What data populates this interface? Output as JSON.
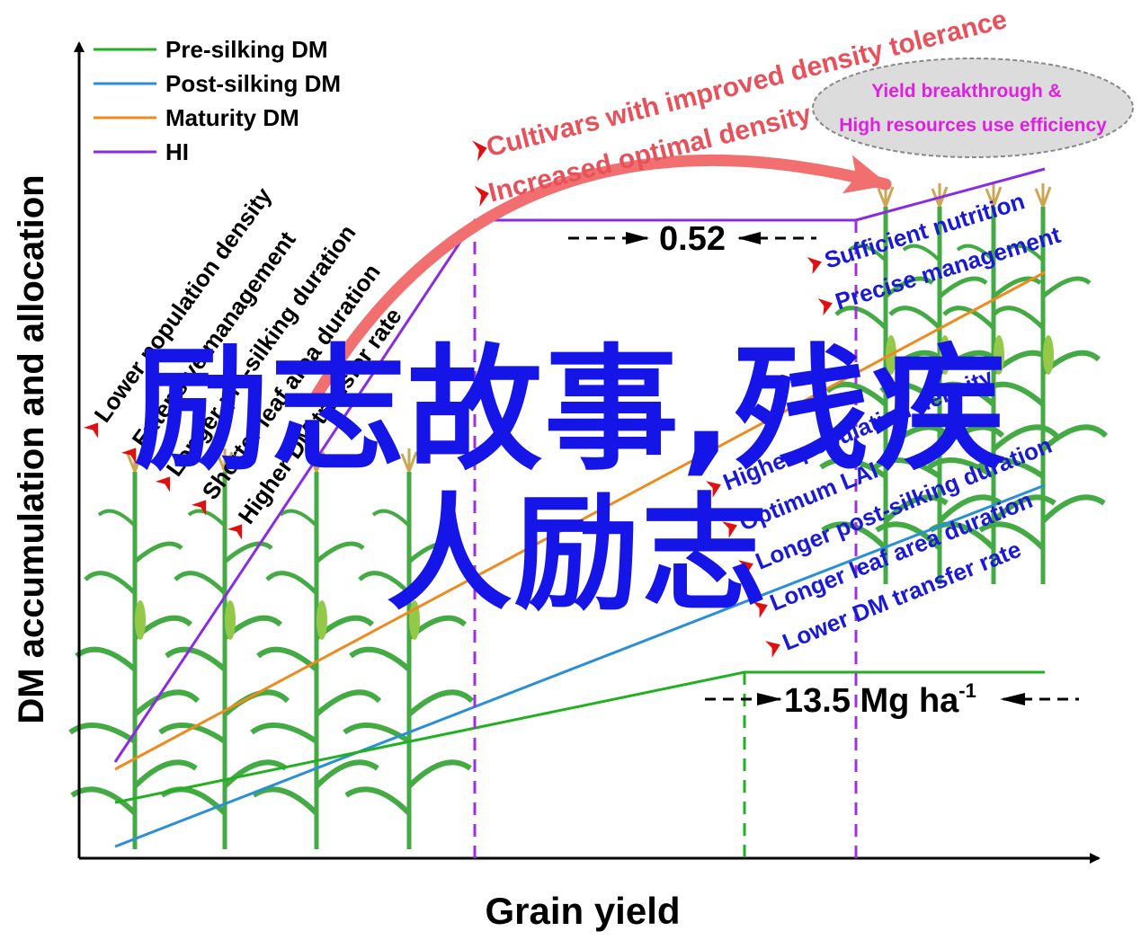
{
  "axes": {
    "xlabel": "Grain yield",
    "ylabel": "DM accumulation and allocation"
  },
  "legend": [
    {
      "label": "Pre-silking DM",
      "color": "#22b022"
    },
    {
      "label": "Post-silking DM",
      "color": "#2a8fd6"
    },
    {
      "label": "Maturity DM",
      "color": "#ee8a1e"
    },
    {
      "label": "HI",
      "color": "#8a2be2"
    }
  ],
  "left_factors": [
    "Lower population density",
    "Extensive management",
    "Longer pre-silking duration",
    "Shorter leaf area duration",
    "Higher DM transfer rate"
  ],
  "right_factors": [
    "Sufficient nutrition",
    "Precise management",
    "Higher population density",
    "Optimum LAI",
    "Longer  post-silking duration",
    "Longer leaf area duration",
    "Lower DM transfer rate"
  ],
  "arc_labels": [
    "Cultivars with improved density tolerance",
    "Increased optimal density"
  ],
  "ellipse": {
    "line1": "Yield breakthrough &",
    "line2": "High resources use efficiency"
  },
  "hi_value": "0.52",
  "yield_value": "13.5 Mg ha",
  "yield_unit_sup": "-1",
  "overlay": {
    "line1": "励志故事,残疾",
    "line2": "人励志"
  },
  "colors": {
    "pre_silking": "#22b022",
    "post_silking": "#2a8fd6",
    "maturity": "#ee8a1e",
    "hi": "#8a2be2",
    "arc": "#f26f6f",
    "arc_text": "#e8505a",
    "left_text": "#000000",
    "right_text": "#1a1ad6",
    "bullet": "#e01010",
    "ellipse_text": "#e020e0",
    "overlay": "#1515e8",
    "plant": "#3aa63a"
  }
}
